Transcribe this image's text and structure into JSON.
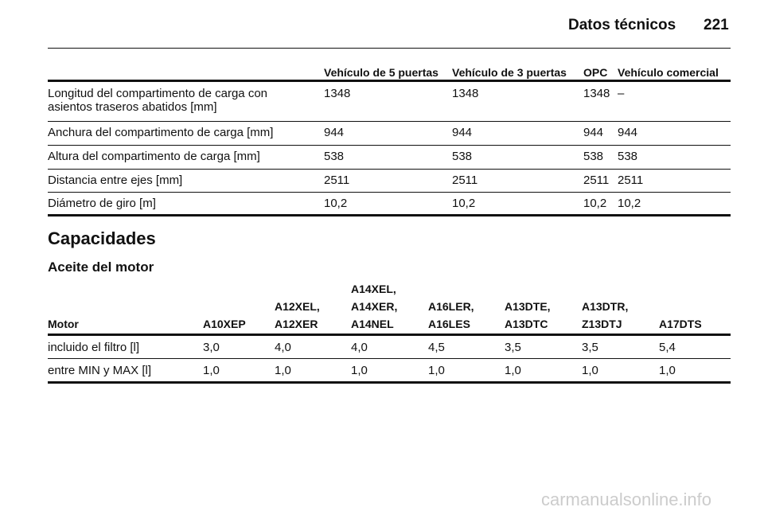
{
  "header": {
    "title": "Datos técnicos",
    "page": "221"
  },
  "table1": {
    "headers": [
      "Vehículo de 5 puertas",
      "Vehículo de 3 puertas",
      "OPC",
      "Vehículo comercial"
    ],
    "rows": [
      {
        "label": [
          "Longitud del compartimento de carga con",
          "asientos traseros abatidos [mm]"
        ],
        "values": [
          "1348",
          "1348",
          "1348",
          "–"
        ]
      },
      {
        "label": [
          "Anchura del compartimento de carga [mm]"
        ],
        "values": [
          "944",
          "944",
          "944",
          "944"
        ]
      },
      {
        "label": [
          "Altura del compartimento de carga [mm]"
        ],
        "values": [
          "538",
          "538",
          "538",
          "538"
        ]
      },
      {
        "label": [
          "Distancia entre ejes [mm]"
        ],
        "values": [
          "2511",
          "2511",
          "2511",
          "2511"
        ]
      },
      {
        "label": [
          "Diámetro de giro [m]"
        ],
        "values": [
          "10,2",
          "10,2",
          "10,2",
          "10,2"
        ]
      }
    ]
  },
  "section": "Capacidades",
  "subsection": "Aceite del motor",
  "table2": {
    "corner": "Motor",
    "headers": [
      [
        "A10XEP"
      ],
      [
        "A12XEL,",
        "A12XER"
      ],
      [
        "A14XEL,",
        "A14XER,",
        "A14NEL"
      ],
      [
        "A16LER,",
        "A16LES"
      ],
      [
        "A13DTE,",
        "A13DTC"
      ],
      [
        "A13DTR,",
        "Z13DTJ"
      ],
      [
        "A17DTS"
      ]
    ],
    "rows": [
      {
        "label": "incluido el filtro [l]",
        "values": [
          "3,0",
          "4,0",
          "4,0",
          "4,5",
          "3,5",
          "3,5",
          "5,4"
        ]
      },
      {
        "label": "entre MIN y MAX [l]",
        "values": [
          "1,0",
          "1,0",
          "1,0",
          "1,0",
          "1,0",
          "1,0",
          "1,0"
        ]
      }
    ]
  },
  "watermark": "carmanualsonline.info"
}
